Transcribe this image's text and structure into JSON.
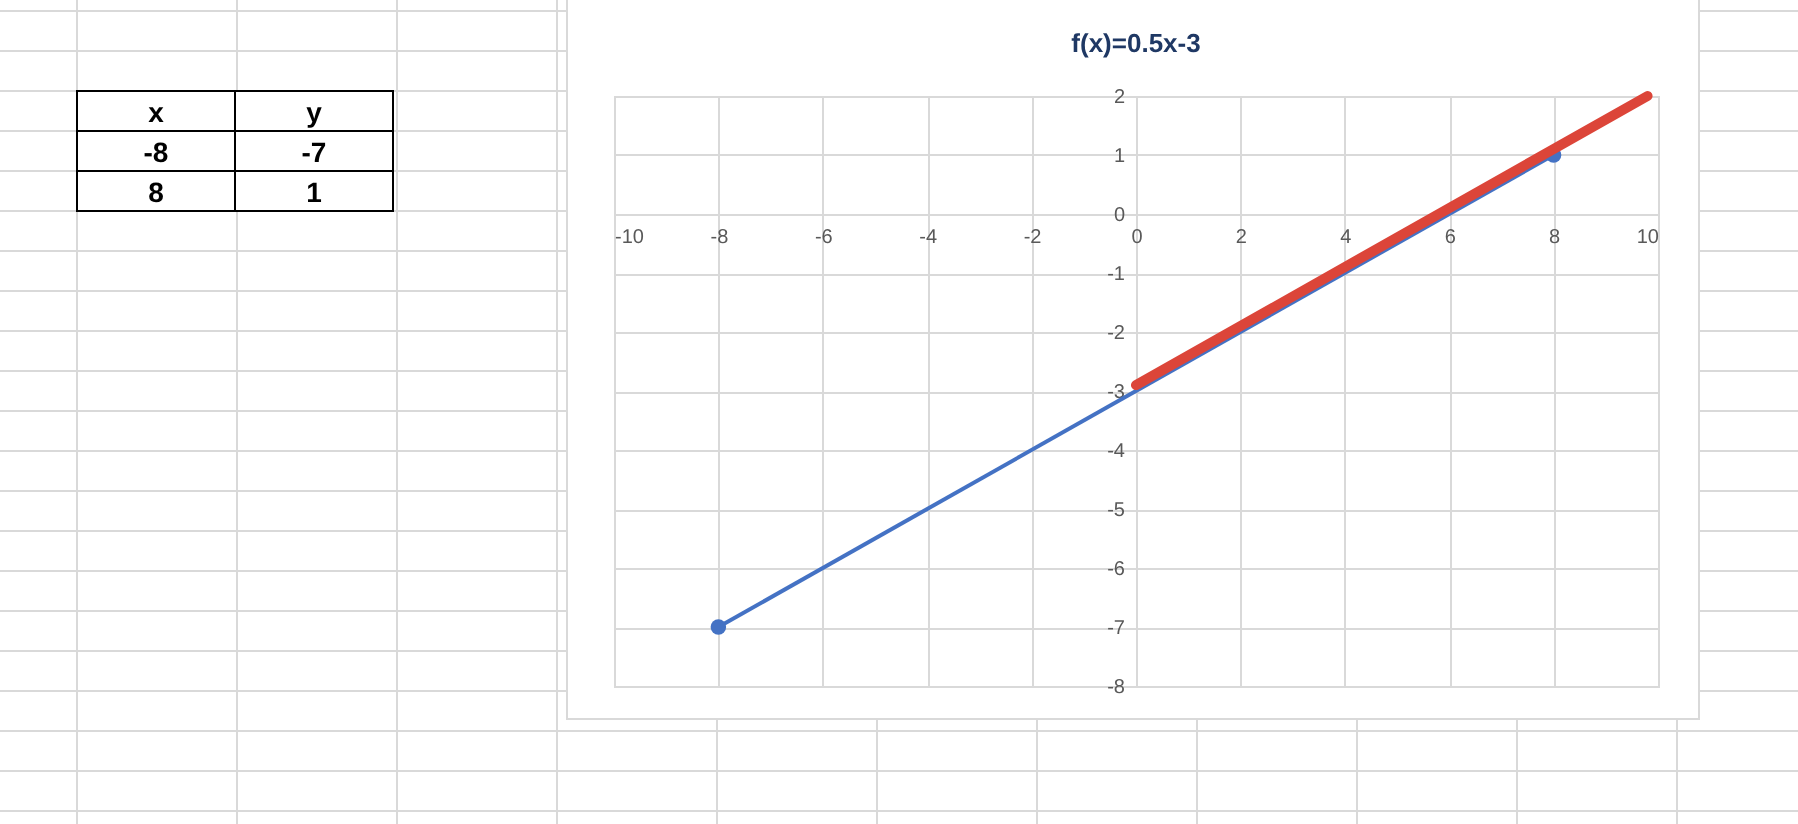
{
  "chart_data": {
    "type": "line",
    "title": "f(x)=0.5x-3",
    "series": [
      {
        "x": [
          -8,
          8
        ],
        "values": [
          -7,
          1
        ],
        "color": "#4472c4",
        "marker": "circle"
      },
      {
        "x": [
          0,
          9.8
        ],
        "values": [
          -2.9,
          2
        ],
        "color": "#dc4539",
        "marker": "none"
      }
    ],
    "xlim": [
      -10,
      10
    ],
    "xticks": [
      -10,
      -8,
      -6,
      -4,
      -2,
      0,
      2,
      4,
      6,
      8,
      10
    ],
    "ylim": [
      -8,
      2
    ],
    "yticks": [
      -8,
      -7,
      -6,
      -5,
      -4,
      -3,
      -2,
      -1,
      0,
      1,
      2
    ],
    "grid": true,
    "annotations": [
      "x",
      "y",
      "-8",
      "-7",
      "8",
      "1"
    ]
  }
}
